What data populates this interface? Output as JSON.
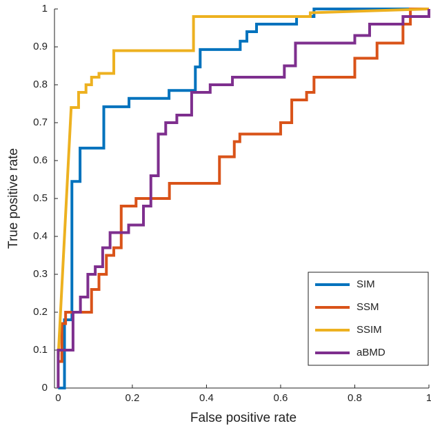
{
  "chart_data": {
    "type": "line",
    "xlabel": "False positive rate",
    "ylabel": "True positive rate",
    "xlim": [
      -0.01,
      1
    ],
    "ylim": [
      0,
      1
    ],
    "xticks": [
      0,
      0.2,
      0.4,
      0.6,
      0.8,
      1
    ],
    "yticks": [
      0,
      0.1,
      0.2,
      0.3,
      0.4,
      0.5,
      0.6,
      0.7,
      0.8,
      0.9,
      1
    ],
    "legend_location": "southeast",
    "series": [
      {
        "name": "SIM",
        "color": "#0072bd",
        "x": [
          0,
          0.017,
          0.017,
          0.037,
          0.037,
          0.059,
          0.059,
          0.123,
          0.123,
          0.191,
          0.191,
          0.299,
          0.299,
          0.37,
          0.37,
          0.383,
          0.383,
          0.491,
          0.491,
          0.509,
          0.509,
          0.535,
          0.535,
          0.643,
          0.643,
          0.69,
          0.69,
          1
        ],
        "values": [
          0,
          0,
          0.18,
          0.18,
          0.545,
          0.545,
          0.633,
          0.633,
          0.742,
          0.742,
          0.764,
          0.764,
          0.785,
          0.785,
          0.847,
          0.847,
          0.893,
          0.893,
          0.915,
          0.915,
          0.94,
          0.94,
          0.96,
          0.96,
          0.98,
          0.98,
          1,
          1
        ]
      },
      {
        "name": "SSM",
        "color": "#d95319",
        "x": [
          0,
          0.01,
          0.01,
          0.02,
          0.02,
          0.04,
          0.04,
          0.09,
          0.09,
          0.11,
          0.11,
          0.13,
          0.13,
          0.15,
          0.15,
          0.17,
          0.17,
          0.21,
          0.21,
          0.3,
          0.3,
          0.435,
          0.435,
          0.475,
          0.475,
          0.49,
          0.49,
          0.6,
          0.6,
          0.63,
          0.63,
          0.67,
          0.67,
          0.69,
          0.69,
          0.8,
          0.8,
          0.86,
          0.86,
          0.93,
          0.93,
          0.95,
          0.95,
          1
        ],
        "values": [
          0.07,
          0.07,
          0.17,
          0.17,
          0.2,
          0.2,
          0.2,
          0.2,
          0.26,
          0.26,
          0.3,
          0.3,
          0.35,
          0.35,
          0.37,
          0.37,
          0.48,
          0.48,
          0.5,
          0.5,
          0.54,
          0.54,
          0.61,
          0.61,
          0.65,
          0.65,
          0.67,
          0.67,
          0.7,
          0.7,
          0.76,
          0.76,
          0.78,
          0.78,
          0.82,
          0.82,
          0.87,
          0.87,
          0.91,
          0.91,
          0.96,
          0.96,
          1,
          1
        ]
      },
      {
        "name": "SSIM",
        "color": "#edb120",
        "x": [
          0,
          0.035,
          0.055,
          0.055,
          0.075,
          0.075,
          0.09,
          0.09,
          0.11,
          0.11,
          0.15,
          0.15,
          0.365,
          0.365,
          0.68,
          0.68,
          1
        ],
        "values": [
          0.08,
          0.74,
          0.74,
          0.78,
          0.78,
          0.8,
          0.8,
          0.82,
          0.82,
          0.83,
          0.83,
          0.89,
          0.89,
          0.98,
          0.98,
          0.99,
          1
        ]
      },
      {
        "name": "aBMD",
        "color": "#7e2f8e",
        "x": [
          0,
          0,
          0.04,
          0.04,
          0.06,
          0.06,
          0.08,
          0.08,
          0.1,
          0.1,
          0.12,
          0.12,
          0.14,
          0.14,
          0.19,
          0.19,
          0.23,
          0.23,
          0.25,
          0.25,
          0.27,
          0.27,
          0.29,
          0.29,
          0.32,
          0.32,
          0.36,
          0.36,
          0.41,
          0.41,
          0.47,
          0.47,
          0.61,
          0.61,
          0.64,
          0.64,
          0.8,
          0.8,
          0.84,
          0.84,
          0.93,
          0.93,
          1,
          1
        ],
        "values": [
          0,
          0.1,
          0.1,
          0.2,
          0.2,
          0.24,
          0.24,
          0.3,
          0.3,
          0.32,
          0.32,
          0.37,
          0.37,
          0.41,
          0.41,
          0.43,
          0.43,
          0.48,
          0.48,
          0.56,
          0.56,
          0.67,
          0.67,
          0.7,
          0.7,
          0.72,
          0.72,
          0.78,
          0.78,
          0.8,
          0.8,
          0.82,
          0.82,
          0.85,
          0.85,
          0.91,
          0.91,
          0.93,
          0.93,
          0.96,
          0.96,
          0.98,
          0.98,
          1
        ]
      }
    ]
  }
}
